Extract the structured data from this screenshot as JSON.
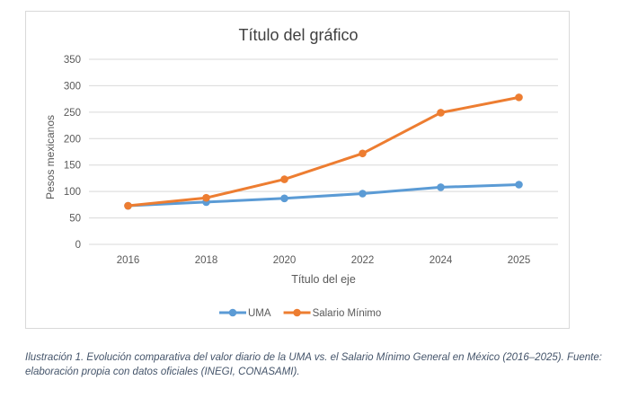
{
  "chart_data": {
    "type": "line",
    "title": "Título del gráfico",
    "xlabel": "Título del eje",
    "ylabel": "Pesos mexicanos",
    "categories": [
      "2016",
      "2018",
      "2020",
      "2022",
      "2024",
      "2025"
    ],
    "ylim": [
      0,
      350
    ],
    "yticks": [
      0,
      50,
      100,
      150,
      200,
      250,
      300,
      350
    ],
    "grid": true,
    "legend_position": "bottom",
    "series": [
      {
        "name": "UMA",
        "color": "#5b9bd5",
        "values": [
          73,
          80,
          87,
          96,
          108,
          113
        ]
      },
      {
        "name": "Salario Mínimo",
        "color": "#ed7d31",
        "values": [
          73,
          88,
          123,
          172,
          249,
          278
        ]
      }
    ]
  },
  "caption": "Ilustración 1. Evolución comparativa del valor diario de la UMA vs. el Salario Mínimo General en México (2016–2025). Fuente: elaboración propia con datos oficiales (INEGI, CONASAMI)."
}
